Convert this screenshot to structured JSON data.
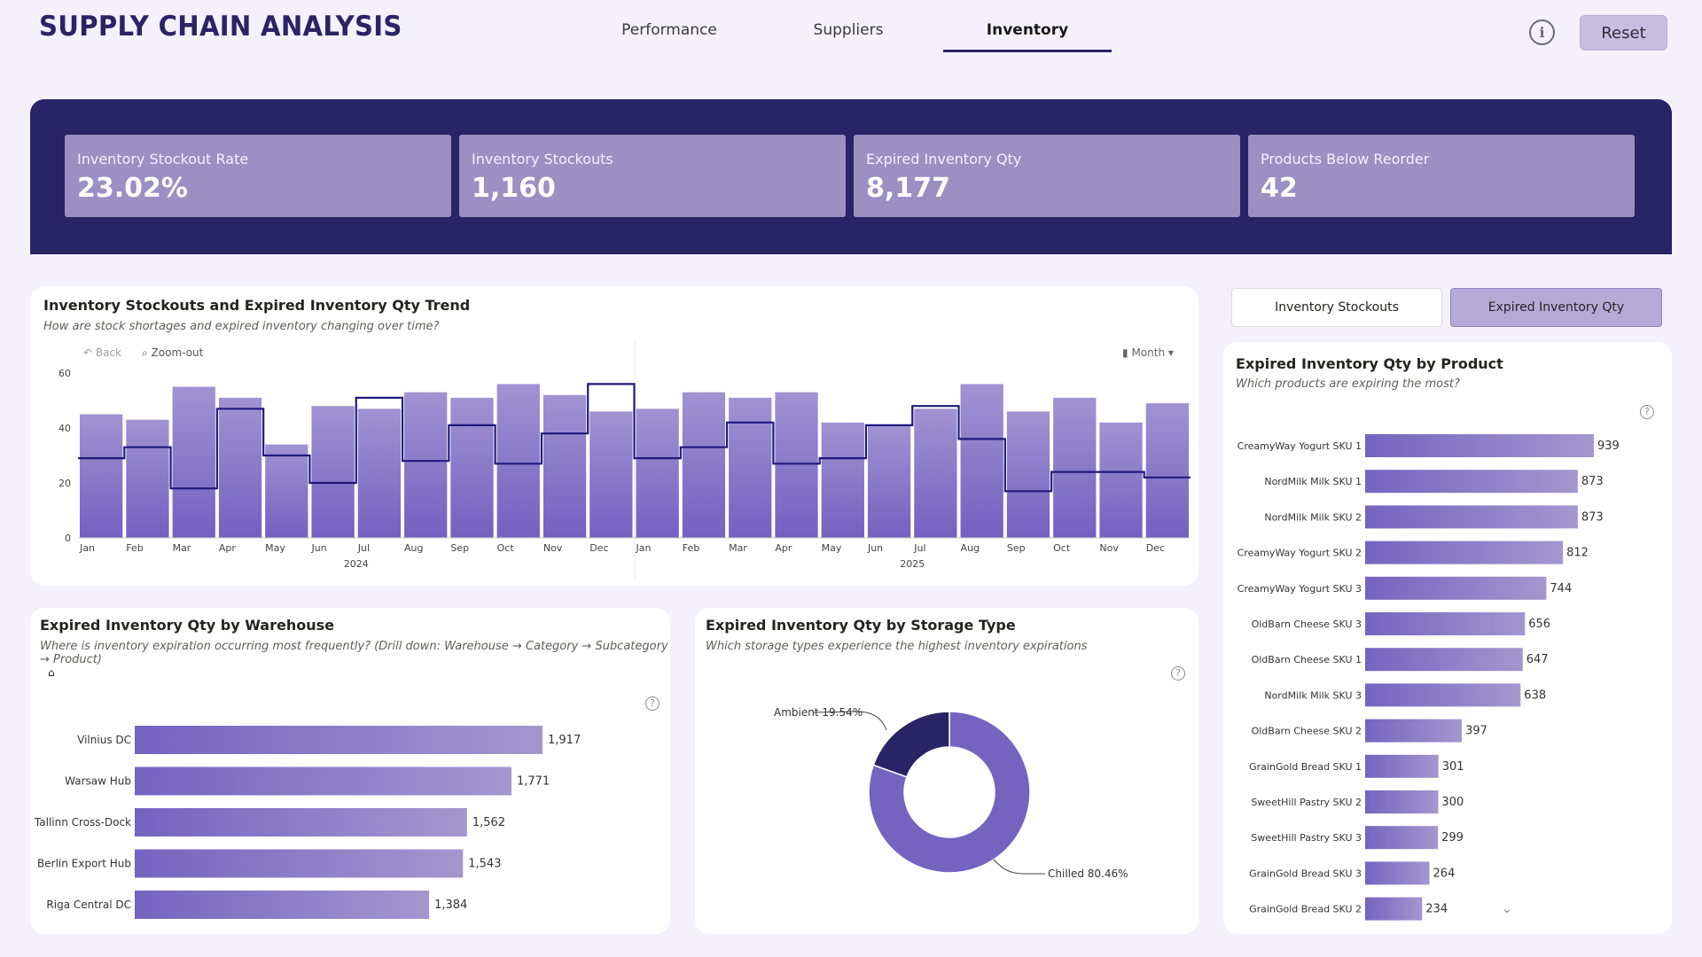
{
  "header": {
    "title": "SUPPLY CHAIN ANALYSIS",
    "tabs": [
      {
        "label": "Performance"
      },
      {
        "label": "Suppliers"
      },
      {
        "label": "Inventory"
      }
    ],
    "info_icon": "info-icon",
    "reset_label": "Reset"
  },
  "colors": {
    "banner": "#292466",
    "kpi_card": "#9c8fc2",
    "bar_purple": "#7464c0",
    "line_navy": "#1f1a7a",
    "donut_chilled": "#7464c0",
    "donut_ambient": "#292466"
  },
  "kpis": [
    {
      "label": "Inventory Stockout Rate",
      "value": "23.02%"
    },
    {
      "label": "Inventory Stockouts",
      "value": "1,160"
    },
    {
      "label": "Expired Inventory Qty",
      "value": "8,177"
    },
    {
      "label": "Products Below Reorder",
      "value": "42"
    }
  ],
  "trend": {
    "title": "Inventory Stockouts and Expired Inventory Qty Trend",
    "subtitle": "How are stock shortages and expired inventory changing over time?",
    "back_label": "Back",
    "zoom_label": "Zoom-out",
    "period_label": "Month"
  },
  "warehouse": {
    "title": "Expired Inventory Qty by Warehouse",
    "subtitle": "Where is inventory expiration occurring most frequently? (Drill down: Warehouse → Category → Subcategory → Product)"
  },
  "storage": {
    "title": "Expired Inventory Qty by Storage Type",
    "subtitle": "Which storage types experience the highest inventory expirations"
  },
  "product": {
    "title": "Expired Inventory Qty by Product",
    "subtitle": "Which products are expiring the most?"
  },
  "toggles": [
    {
      "label": "Inventory Stockouts",
      "active": false
    },
    {
      "label": "Expired Inventory Qty",
      "active": true
    }
  ],
  "chart_data": [
    {
      "type": "bar",
      "title": "Inventory Stockouts and Expired Inventory Qty Trend",
      "categories": [
        "Jan",
        "Feb",
        "Mar",
        "Apr",
        "May",
        "Jun",
        "Jul",
        "Aug",
        "Sep",
        "Oct",
        "Nov",
        "Dec",
        "Jan",
        "Feb",
        "Mar",
        "Apr",
        "May",
        "Jun",
        "Jul",
        "Aug",
        "Sep",
        "Oct",
        "Nov",
        "Dec"
      ],
      "year_groups": [
        {
          "label": "2024",
          "count": 12
        },
        {
          "label": "2025",
          "count": 12
        }
      ],
      "series": [
        {
          "kind": "bar",
          "values": [
            45,
            43,
            55,
            51,
            34,
            48,
            47,
            53,
            51,
            56,
            52,
            46,
            47,
            53,
            51,
            53,
            42,
            41,
            47,
            56,
            46,
            51,
            42,
            49
          ]
        },
        {
          "kind": "step-line",
          "values": [
            29,
            33,
            18,
            47,
            30,
            20,
            51,
            28,
            41,
            27,
            38,
            56,
            29,
            33,
            42,
            27,
            29,
            41,
            48,
            36,
            17,
            24,
            24,
            22
          ]
        }
      ],
      "ylim": [
        0,
        60
      ],
      "yticks": [
        0,
        20,
        40,
        60
      ]
    },
    {
      "type": "bar",
      "orientation": "horizontal",
      "title": "Expired Inventory Qty by Warehouse",
      "categories": [
        "Vilnius DC",
        "Warsaw Hub",
        "Tallinn Cross-Dock",
        "Berlin Export Hub",
        "Riga Central DC"
      ],
      "values": [
        1917,
        1771,
        1562,
        1543,
        1384
      ],
      "labels": [
        "1,917",
        "1,771",
        "1,562",
        "1,543",
        "1,384"
      ]
    },
    {
      "type": "pie",
      "title": "Expired Inventory Qty by Storage Type",
      "categories": [
        "Chilled",
        "Ambient"
      ],
      "values": [
        80.46,
        19.54
      ],
      "labels": [
        "Chilled 80.46%",
        "Ambient 19.54%"
      ]
    },
    {
      "type": "bar",
      "orientation": "horizontal",
      "title": "Expired Inventory Qty by Product",
      "categories": [
        "CreamyWay Yogurt SKU 1",
        "NordMilk Milk SKU 1",
        "NordMilk Milk SKU 2",
        "CreamyWay Yogurt SKU 2",
        "CreamyWay Yogurt SKU 3",
        "OldBarn Cheese SKU 3",
        "OldBarn Cheese SKU 1",
        "NordMilk Milk SKU 3",
        "OldBarn Cheese SKU 2",
        "GrainGold Bread SKU 1",
        "SweetHill Pastry SKU 2",
        "SweetHill Pastry SKU 3",
        "GrainGold Bread SKU 3",
        "GrainGold Bread SKU 2"
      ],
      "values": [
        939,
        873,
        873,
        812,
        744,
        656,
        647,
        638,
        397,
        301,
        300,
        299,
        264,
        234
      ]
    }
  ]
}
